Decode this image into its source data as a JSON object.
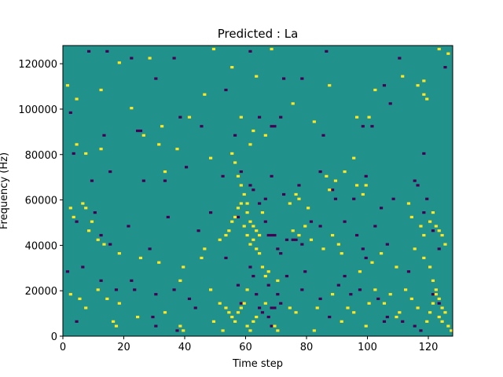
{
  "chart_data": {
    "type": "heatmap",
    "title": "Predicted : La",
    "xlabel": "Time step",
    "ylabel": "Frequency (Hz)",
    "xlim": [
      0,
      128
    ],
    "ylim": [
      0,
      128000
    ],
    "grid": false,
    "x_ticks": [
      0,
      20,
      40,
      60,
      80,
      100,
      120
    ],
    "y_ticks": [
      0,
      20000,
      40000,
      60000,
      80000,
      100000,
      120000
    ],
    "x_tick_labels": [
      "0",
      "20",
      "40",
      "60",
      "80",
      "100",
      "120"
    ],
    "y_tick_labels": [
      "0",
      "20000",
      "40000",
      "60000",
      "80000",
      "100000",
      "120000"
    ],
    "colormap": {
      "low": "#440154",
      "mid": "#21918c",
      "high": "#fde725"
    },
    "background_value": "mid",
    "grid_shape": {
      "time_steps": 128,
      "frequency_bins": 128,
      "bin_width_hz": 1000
    },
    "low_cells": [
      [
        8,
        125
      ],
      [
        14,
        125
      ],
      [
        22,
        122
      ],
      [
        30,
        113
      ],
      [
        36,
        122
      ],
      [
        53,
        108
      ],
      [
        61,
        125
      ],
      [
        72,
        113
      ],
      [
        78,
        113
      ],
      [
        86,
        125
      ],
      [
        110,
        122
      ],
      [
        125,
        118
      ],
      [
        2,
        98
      ],
      [
        13,
        88
      ],
      [
        24,
        90
      ],
      [
        25,
        90
      ],
      [
        38,
        96
      ],
      [
        45,
        92
      ],
      [
        56,
        88
      ],
      [
        64,
        96
      ],
      [
        68,
        92
      ],
      [
        69,
        92
      ],
      [
        71,
        96
      ],
      [
        85,
        88
      ],
      [
        98,
        92
      ],
      [
        101,
        92
      ],
      [
        105,
        110
      ],
      [
        107,
        102
      ],
      [
        118,
        80
      ],
      [
        3,
        80
      ],
      [
        9,
        68
      ],
      [
        15,
        72
      ],
      [
        26,
        68
      ],
      [
        33,
        68
      ],
      [
        40,
        74
      ],
      [
        52,
        70
      ],
      [
        58,
        72
      ],
      [
        61,
        66
      ],
      [
        62,
        64
      ],
      [
        66,
        60
      ],
      [
        68,
        70
      ],
      [
        72,
        62
      ],
      [
        77,
        66
      ],
      [
        84,
        72
      ],
      [
        88,
        64
      ],
      [
        95,
        60
      ],
      [
        99,
        70
      ],
      [
        108,
        60
      ],
      [
        115,
        68
      ],
      [
        116,
        66
      ],
      [
        119,
        60
      ],
      [
        4,
        50
      ],
      [
        10,
        54
      ],
      [
        12,
        44
      ],
      [
        15,
        40
      ],
      [
        21,
        48
      ],
      [
        28,
        38
      ],
      [
        34,
        52
      ],
      [
        44,
        46
      ],
      [
        48,
        54
      ],
      [
        53,
        34
      ],
      [
        57,
        52
      ],
      [
        64,
        58
      ],
      [
        66,
        50
      ],
      [
        67,
        44
      ],
      [
        68,
        44
      ],
      [
        69,
        44
      ],
      [
        70,
        38
      ],
      [
        71,
        36
      ],
      [
        73,
        42
      ],
      [
        75,
        42
      ],
      [
        76,
        42
      ],
      [
        78,
        40
      ],
      [
        81,
        50
      ],
      [
        84,
        48
      ],
      [
        89,
        60
      ],
      [
        92,
        50
      ],
      [
        96,
        44
      ],
      [
        98,
        38
      ],
      [
        99,
        34
      ],
      [
        102,
        48
      ],
      [
        104,
        56
      ],
      [
        106,
        40
      ],
      [
        118,
        54
      ],
      [
        121,
        46
      ],
      [
        123,
        38
      ],
      [
        1,
        28
      ],
      [
        6,
        30
      ],
      [
        12,
        24
      ],
      [
        17,
        20
      ],
      [
        22,
        24
      ],
      [
        23,
        20
      ],
      [
        30,
        18
      ],
      [
        36,
        20
      ],
      [
        41,
        16
      ],
      [
        57,
        22
      ],
      [
        61,
        30
      ],
      [
        62,
        26
      ],
      [
        63,
        18
      ],
      [
        64,
        12
      ],
      [
        65,
        10
      ],
      [
        67,
        22
      ],
      [
        68,
        12
      ],
      [
        69,
        12
      ],
      [
        70,
        18
      ],
      [
        71,
        14
      ],
      [
        73,
        26
      ],
      [
        78,
        20
      ],
      [
        84,
        16
      ],
      [
        87,
        8
      ],
      [
        92,
        26
      ],
      [
        97,
        20
      ],
      [
        103,
        16
      ],
      [
        106,
        8
      ],
      [
        111,
        6
      ],
      [
        113,
        28
      ],
      [
        121,
        18
      ],
      [
        123,
        14
      ],
      [
        4,
        6
      ],
      [
        29,
        8
      ],
      [
        30,
        4
      ],
      [
        37,
        2
      ],
      [
        43,
        12
      ],
      [
        58,
        14
      ],
      [
        67,
        8
      ],
      [
        68,
        4
      ],
      [
        79,
        28
      ],
      [
        90,
        22
      ],
      [
        94,
        18
      ],
      [
        105,
        6
      ],
      [
        115,
        4
      ],
      [
        117,
        2
      ]
    ],
    "high_cells": [
      [
        18,
        120
      ],
      [
        28,
        122
      ],
      [
        49,
        126
      ],
      [
        55,
        118
      ],
      [
        63,
        114
      ],
      [
        68,
        126
      ],
      [
        87,
        110
      ],
      [
        102,
        108
      ],
      [
        111,
        114
      ],
      [
        118,
        112
      ],
      [
        123,
        126
      ],
      [
        126,
        124
      ],
      [
        1,
        110
      ],
      [
        4,
        104
      ],
      [
        12,
        108
      ],
      [
        22,
        100
      ],
      [
        32,
        92
      ],
      [
        41,
        96
      ],
      [
        46,
        106
      ],
      [
        58,
        96
      ],
      [
        61,
        84
      ],
      [
        62,
        90
      ],
      [
        66,
        88
      ],
      [
        75,
        102
      ],
      [
        82,
        94
      ],
      [
        96,
        96
      ],
      [
        100,
        96
      ],
      [
        116,
        110
      ],
      [
        118,
        106
      ],
      [
        119,
        104
      ],
      [
        4,
        84
      ],
      [
        7,
        80
      ],
      [
        12,
        82
      ],
      [
        26,
        88
      ],
      [
        31,
        84
      ],
      [
        33,
        72
      ],
      [
        37,
        82
      ],
      [
        48,
        78
      ],
      [
        55,
        80
      ],
      [
        56,
        76
      ],
      [
        57,
        70
      ],
      [
        58,
        66
      ],
      [
        59,
        62
      ],
      [
        60,
        58
      ],
      [
        60,
        54
      ],
      [
        61,
        50
      ],
      [
        62,
        48
      ],
      [
        63,
        46
      ],
      [
        64,
        44
      ],
      [
        65,
        54
      ],
      [
        74,
        58
      ],
      [
        76,
        62
      ],
      [
        77,
        60
      ],
      [
        80,
        56
      ],
      [
        86,
        70
      ],
      [
        87,
        64
      ],
      [
        89,
        68
      ],
      [
        92,
        72
      ],
      [
        95,
        78
      ],
      [
        96,
        66
      ],
      [
        98,
        62
      ],
      [
        99,
        66
      ],
      [
        113,
        58
      ],
      [
        114,
        52
      ],
      [
        117,
        48
      ],
      [
        118,
        44
      ],
      [
        120,
        50
      ],
      [
        121,
        54
      ],
      [
        122,
        48
      ],
      [
        123,
        46
      ],
      [
        124,
        44
      ],
      [
        125,
        40
      ],
      [
        2,
        56
      ],
      [
        3,
        52
      ],
      [
        6,
        58
      ],
      [
        7,
        56
      ],
      [
        8,
        46
      ],
      [
        9,
        50
      ],
      [
        11,
        42
      ],
      [
        13,
        40
      ],
      [
        18,
        36
      ],
      [
        25,
        34
      ],
      [
        31,
        32
      ],
      [
        39,
        30
      ],
      [
        45,
        34
      ],
      [
        46,
        38
      ],
      [
        51,
        42
      ],
      [
        53,
        44
      ],
      [
        54,
        46
      ],
      [
        55,
        50
      ],
      [
        56,
        52
      ],
      [
        57,
        56
      ],
      [
        58,
        58
      ],
      [
        59,
        48
      ],
      [
        60,
        44
      ],
      [
        61,
        40
      ],
      [
        62,
        42
      ],
      [
        63,
        38
      ],
      [
        64,
        36
      ],
      [
        65,
        30
      ],
      [
        66,
        26
      ],
      [
        67,
        28
      ],
      [
        70,
        24
      ],
      [
        75,
        46
      ],
      [
        77,
        44
      ],
      [
        79,
        48
      ],
      [
        81,
        42
      ],
      [
        85,
        38
      ],
      [
        88,
        44
      ],
      [
        90,
        40
      ],
      [
        91,
        36
      ],
      [
        97,
        28
      ],
      [
        101,
        32
      ],
      [
        104,
        36
      ],
      [
        109,
        30
      ],
      [
        115,
        38
      ],
      [
        118,
        34
      ],
      [
        120,
        30
      ],
      [
        121,
        24
      ],
      [
        122,
        20
      ],
      [
        123,
        16
      ],
      [
        124,
        12
      ],
      [
        125,
        10
      ],
      [
        2,
        18
      ],
      [
        5,
        16
      ],
      [
        7,
        12
      ],
      [
        11,
        20
      ],
      [
        14,
        16
      ],
      [
        18,
        14
      ],
      [
        24,
        8
      ],
      [
        33,
        10
      ],
      [
        38,
        24
      ],
      [
        48,
        20
      ],
      [
        51,
        14
      ],
      [
        53,
        12
      ],
      [
        54,
        10
      ],
      [
        55,
        8
      ],
      [
        56,
        6
      ],
      [
        57,
        10
      ],
      [
        58,
        12
      ],
      [
        59,
        14
      ],
      [
        60,
        20
      ],
      [
        66,
        14
      ],
      [
        69,
        4
      ],
      [
        74,
        12
      ],
      [
        76,
        10
      ],
      [
        83,
        12
      ],
      [
        88,
        18
      ],
      [
        91,
        6
      ],
      [
        93,
        12
      ],
      [
        95,
        10
      ],
      [
        100,
        14
      ],
      [
        102,
        20
      ],
      [
        105,
        14
      ],
      [
        107,
        18
      ],
      [
        109,
        8
      ],
      [
        110,
        10
      ],
      [
        112,
        20
      ],
      [
        114,
        16
      ],
      [
        116,
        12
      ],
      [
        119,
        6
      ],
      [
        120,
        10
      ],
      [
        121,
        14
      ],
      [
        122,
        18
      ],
      [
        123,
        8
      ],
      [
        124,
        6
      ],
      [
        126,
        4
      ],
      [
        127,
        2
      ],
      [
        16,
        6
      ],
      [
        17,
        4
      ],
      [
        38,
        4
      ],
      [
        39,
        2
      ],
      [
        49,
        6
      ],
      [
        52,
        2
      ],
      [
        60,
        4
      ],
      [
        61,
        2
      ],
      [
        62,
        6
      ],
      [
        63,
        8
      ],
      [
        70,
        2
      ],
      [
        82,
        2
      ],
      [
        99,
        4
      ]
    ]
  }
}
